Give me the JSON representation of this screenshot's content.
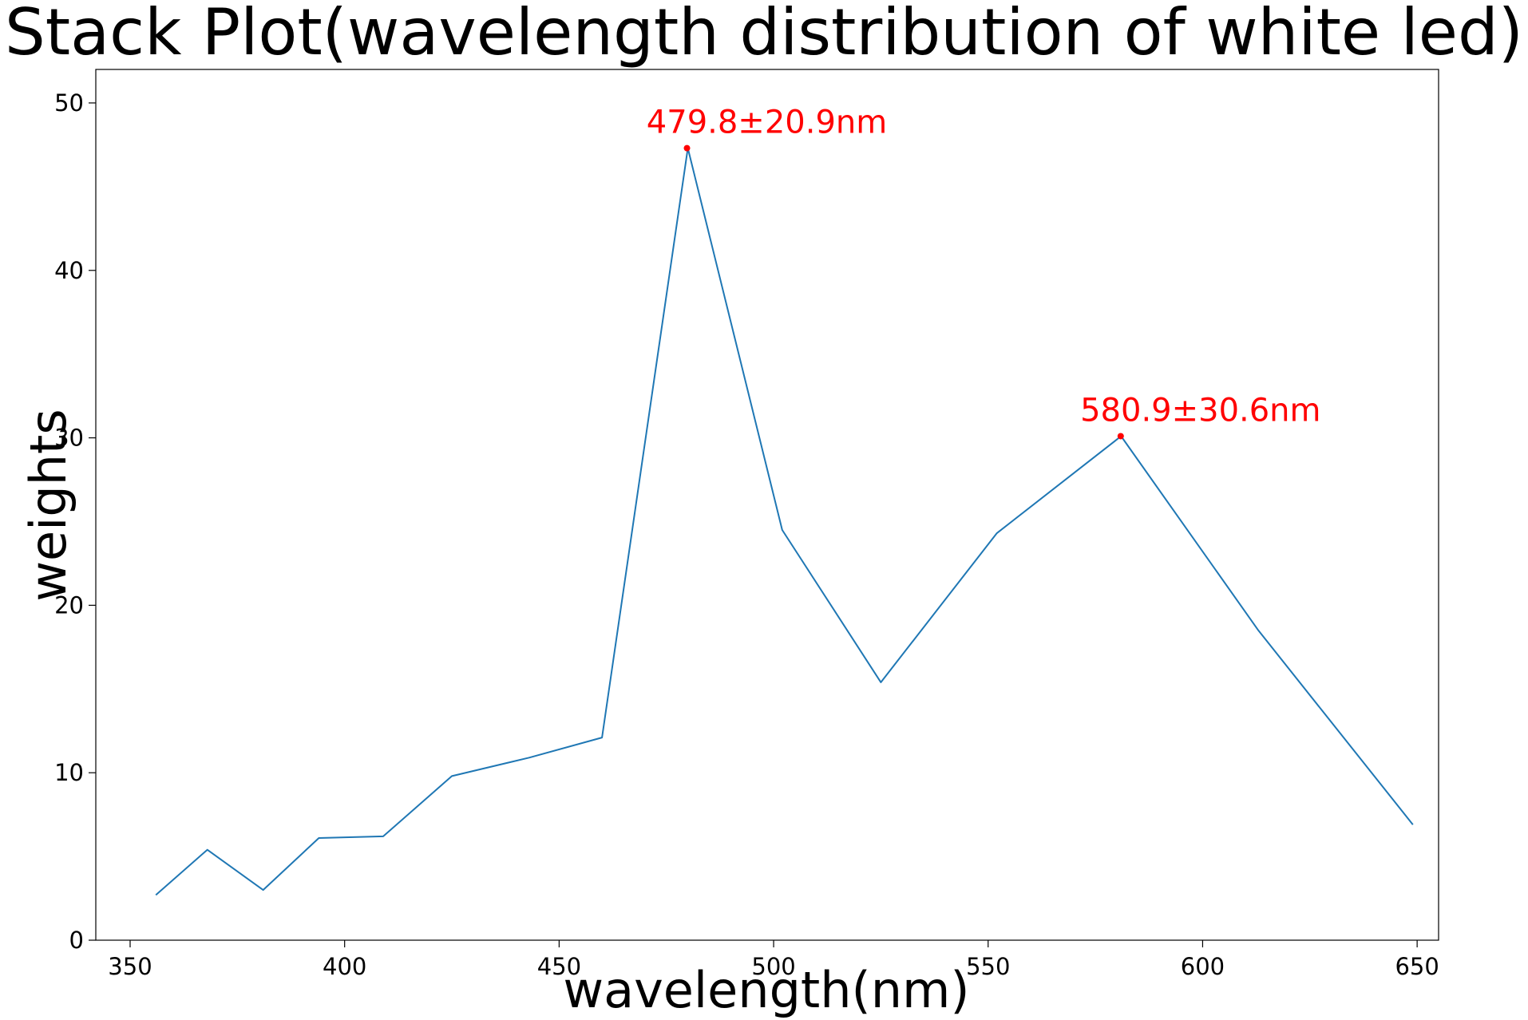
{
  "chart_data": {
    "type": "line",
    "title": "Stack Plot(wavelength distribution of white led)",
    "xlabel": "wavelength(nm)",
    "ylabel": "weights",
    "xlim": [
      342,
      655
    ],
    "ylim": [
      0,
      52
    ],
    "xticks": [
      350,
      400,
      450,
      500,
      550,
      600,
      650
    ],
    "yticks": [
      0,
      10,
      20,
      30,
      40,
      50
    ],
    "grid": false,
    "series": [
      {
        "color": "#1f77b4",
        "x": [
          356,
          368,
          381,
          394,
          409,
          425,
          443,
          460,
          480,
          502,
          525,
          552,
          581,
          613,
          649
        ],
        "y": [
          2.7,
          5.4,
          3.0,
          6.1,
          6.2,
          9.8,
          10.9,
          12.1,
          47.3,
          24.5,
          15.4,
          24.3,
          30.1,
          18.5,
          6.9
        ]
      }
    ],
    "annotations": [
      {
        "text": "479.8±20.9nm",
        "x": 479.8,
        "y": 47.3,
        "color": "#ff0000"
      },
      {
        "text": "580.9±30.6nm",
        "x": 580.9,
        "y": 30.1,
        "color": "#ff0000"
      }
    ]
  }
}
